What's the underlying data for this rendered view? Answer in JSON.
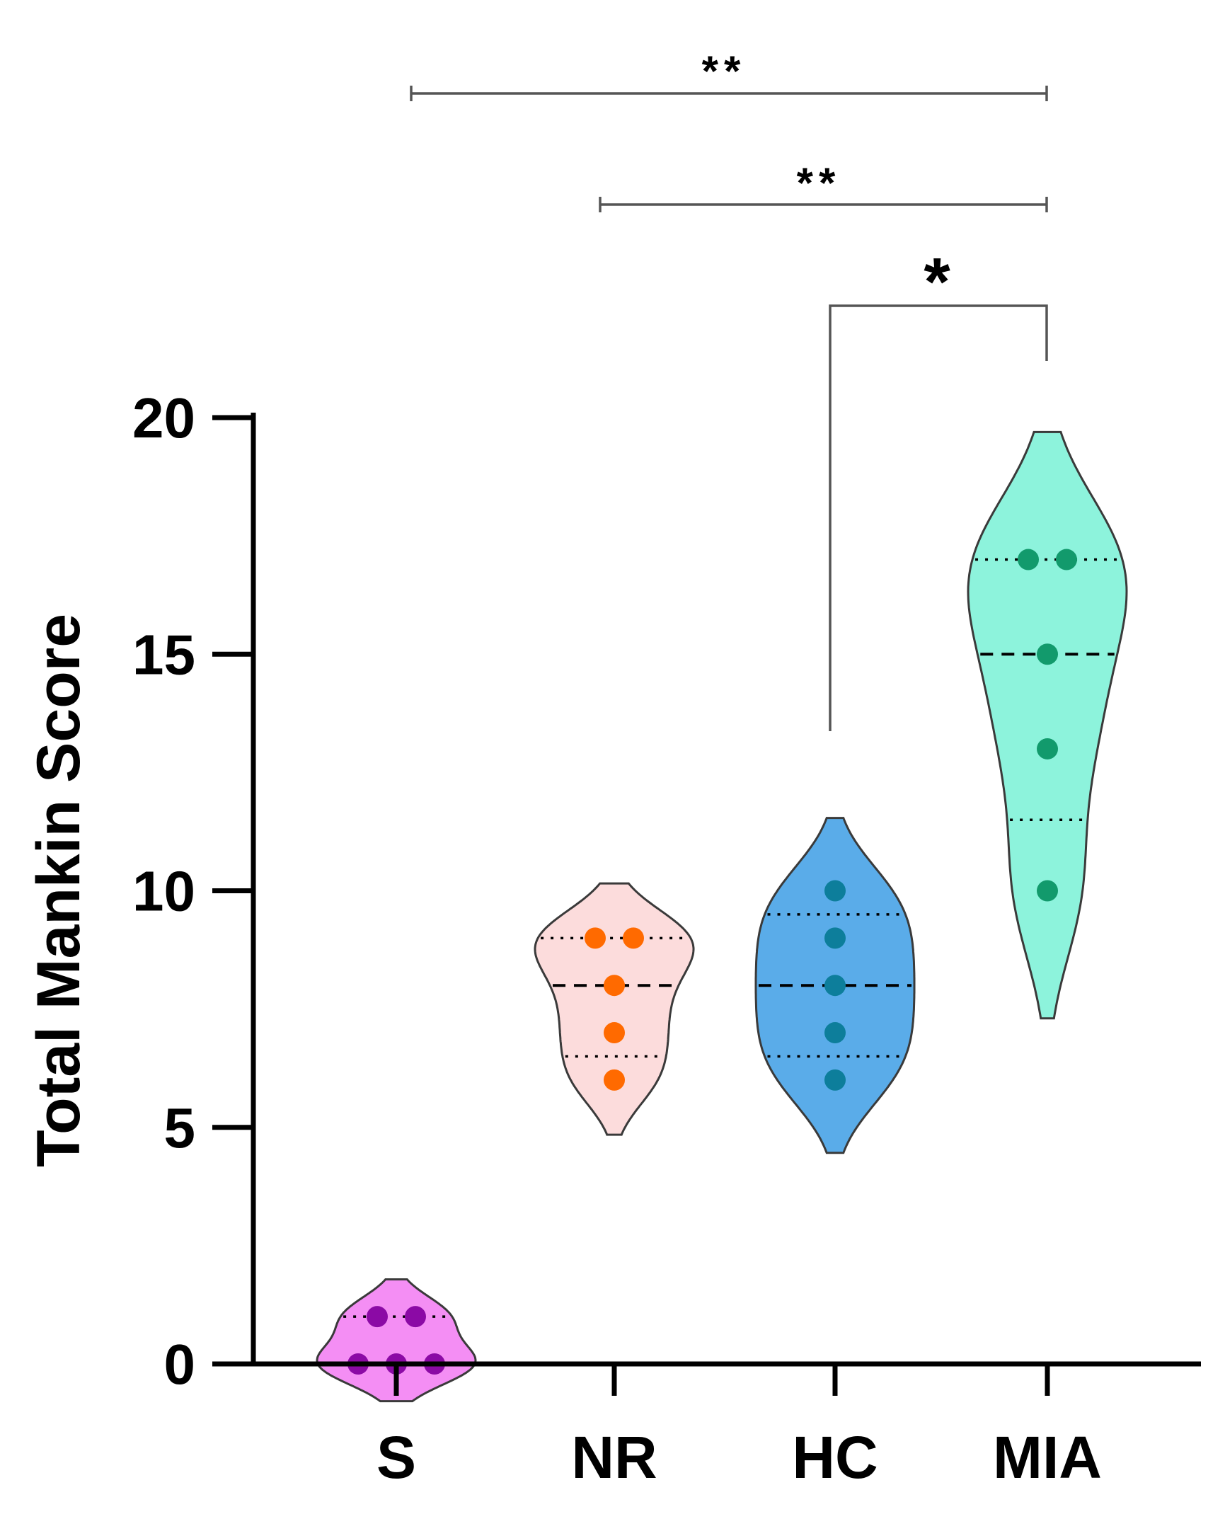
{
  "chart_data": {
    "type": "violin",
    "ylabel": "Total Mankin Score",
    "xlabel": "",
    "ylim": [
      0,
      20
    ],
    "yticks": [
      0,
      5,
      10,
      15,
      20
    ],
    "yticks_text": [
      "0",
      "5",
      "10",
      "15",
      "20"
    ],
    "categories": [
      "S",
      "NR",
      "HC",
      "MIA"
    ],
    "groups": [
      {
        "name": "S",
        "points": [
          1,
          1,
          0,
          0,
          0
        ],
        "median": 0,
        "q1": 0,
        "q3": 1,
        "min": 0,
        "max": 1,
        "fill": "#f48ef4",
        "dot": "#8b0aa5"
      },
      {
        "name": "NR",
        "points": [
          9,
          9,
          8,
          7,
          6
        ],
        "median": 8,
        "q1": 6.5,
        "q3": 9,
        "min": 6,
        "max": 9,
        "fill": "#fcdcdc",
        "dot": "#ff6a00"
      },
      {
        "name": "HC",
        "points": [
          10,
          9,
          8,
          7,
          6
        ],
        "median": 8,
        "q1": 6.5,
        "q3": 9.5,
        "min": 6,
        "max": 10,
        "fill": "#5aace9",
        "dot": "#0d7e9b"
      },
      {
        "name": "MIA",
        "points": [
          17,
          17,
          15,
          13,
          10
        ],
        "median": 15,
        "q1": 11.5,
        "q3": 17,
        "min": 10,
        "max": 17,
        "fill": "#8df3dc",
        "dot": "#129a6c"
      }
    ],
    "significance": [
      {
        "from": "S",
        "to": "MIA",
        "label": "**"
      },
      {
        "from": "NR",
        "to": "MIA",
        "label": "**"
      },
      {
        "from": "HC",
        "to": "MIA",
        "label": "*"
      }
    ],
    "grid": false,
    "legend": "none"
  }
}
